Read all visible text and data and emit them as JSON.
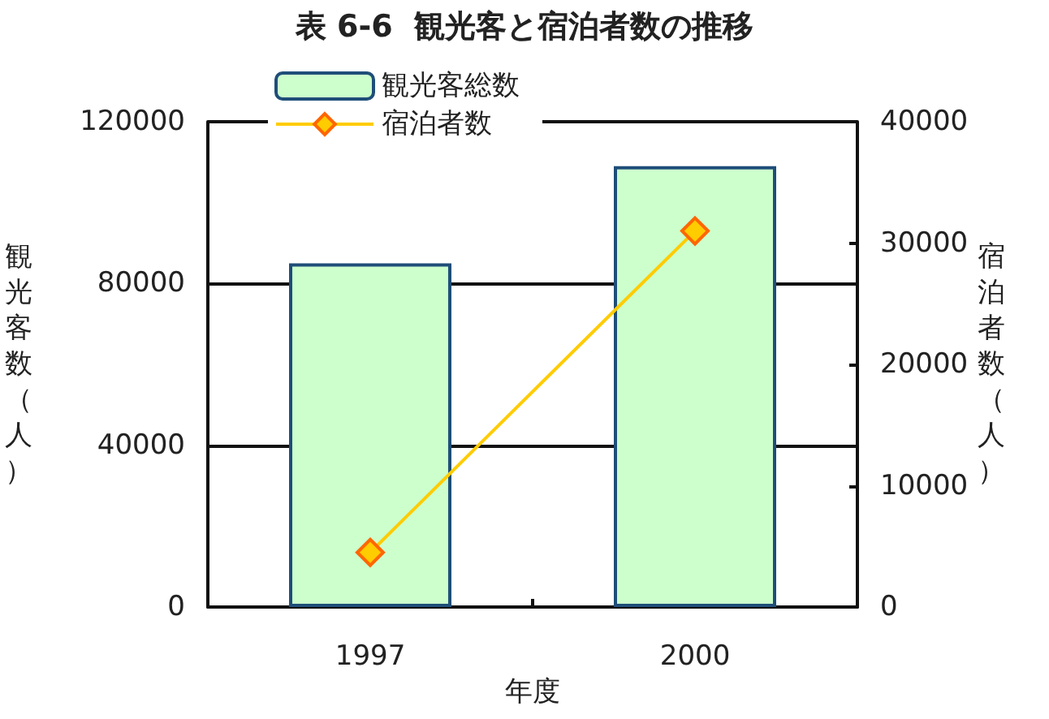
{
  "chart_data": {
    "type": "bar",
    "title": "表 6-6  観光客と宿泊者数の推移",
    "xlabel": "年度",
    "ylabel": "観光客数（人）",
    "y2label": "宿泊者数（人）",
    "categories": [
      "1997",
      "2000"
    ],
    "series": [
      {
        "name": "観光客総数",
        "color": "#ccffcc",
        "values": [
          85000,
          109000
        ]
      },
      {
        "name": "宿泊者数",
        "type": "line",
        "axis": "y2",
        "color": "#ffcc00",
        "values": [
          4500,
          31000
        ]
      }
    ],
    "ylim": [
      0,
      120000
    ],
    "yticks": [
      0,
      40000,
      80000,
      120000
    ],
    "y2lim": [
      0,
      40000
    ],
    "y2ticks": [
      0,
      10000,
      20000,
      30000,
      40000
    ],
    "grid": "y",
    "legend": "top left",
    "marker": "diamond",
    "line_style": "solid"
  }
}
